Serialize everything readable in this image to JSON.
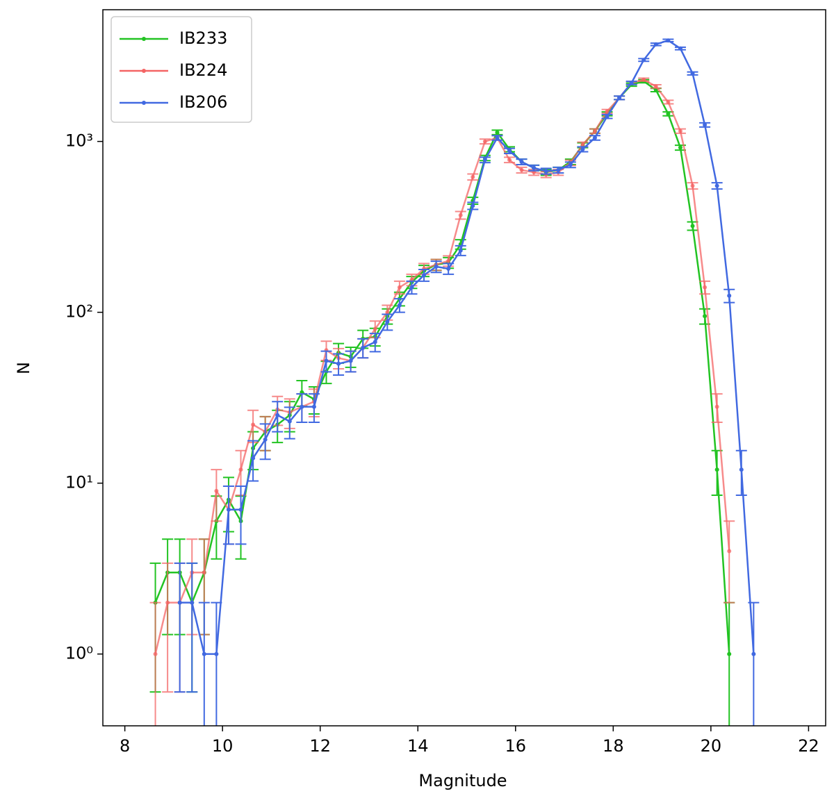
{
  "chart_data": {
    "type": "line",
    "x_label": "Magnitude",
    "y_label": "N",
    "log_y": true,
    "legend": "upper left",
    "xlim": [
      7.55,
      22.35
    ],
    "ylim": [
      0.38,
      5900
    ],
    "xticks": [
      8,
      10,
      12,
      14,
      16,
      18,
      20,
      22
    ],
    "yticks": [
      {
        "value": 1,
        "label": "10⁰"
      },
      {
        "value": 10,
        "label": "10¹"
      },
      {
        "value": 100,
        "label": "10²"
      },
      {
        "value": 1000,
        "label": "10³"
      }
    ],
    "x": [
      8.625,
      8.875,
      9.125,
      9.375,
      9.625,
      9.875,
      10.125,
      10.375,
      10.625,
      10.875,
      11.125,
      11.375,
      11.625,
      11.875,
      12.125,
      12.375,
      12.625,
      12.875,
      13.125,
      13.375,
      13.625,
      13.875,
      14.125,
      14.375,
      14.625,
      14.875,
      15.125,
      15.375,
      15.625,
      15.875,
      16.125,
      16.375,
      16.625,
      16.875,
      17.125,
      17.375,
      17.625,
      17.875,
      18.125,
      18.375,
      18.625,
      18.875,
      19.125,
      19.375,
      19.625,
      19.875,
      20.125,
      20.375,
      20.625,
      20.875
    ],
    "series": [
      {
        "name": "IB233",
        "color": "#22c322",
        "values": [
          2,
          3,
          3,
          2,
          3,
          6,
          8,
          6,
          16,
          20,
          22,
          25,
          34,
          31,
          45,
          58,
          55,
          70,
          72,
          95,
          120,
          150,
          175,
          190,
          195,
          250,
          450,
          800,
          1130,
          900,
          760,
          700,
          660,
          680,
          760,
          950,
          1150,
          1450,
          1800,
          2150,
          2250,
          2000,
          1450,
          920,
          320,
          95,
          12,
          1,
          null,
          null
        ],
        "errors": [
          1.4,
          1.7,
          1.7,
          1.4,
          1.7,
          2.4,
          2.8,
          2.4,
          4,
          4.5,
          4.7,
          5,
          5.8,
          5.6,
          6.7,
          7.6,
          7.4,
          8.4,
          8.5,
          9.7,
          11,
          12,
          13,
          14,
          14,
          16,
          21,
          28,
          34,
          30,
          28,
          26,
          26,
          26,
          28,
          31,
          34,
          38,
          42,
          46,
          47,
          45,
          38,
          30,
          18,
          9.7,
          3.5,
          1,
          null,
          null
        ]
      },
      {
        "name": "IB224",
        "color": "#f46464",
        "values": [
          1,
          2,
          2,
          3,
          3,
          9,
          7,
          12,
          22,
          20,
          27,
          26,
          28,
          30,
          60,
          54,
          52,
          62,
          80,
          100,
          140,
          155,
          180,
          190,
          200,
          370,
          620,
          1000,
          1050,
          780,
          680,
          660,
          640,
          660,
          750,
          960,
          1150,
          1500,
          1800,
          2200,
          2300,
          2100,
          1700,
          1150,
          550,
          140,
          28,
          4,
          null,
          null
        ],
        "errors": [
          1,
          1.4,
          1.4,
          1.7,
          1.7,
          3,
          2.6,
          3.5,
          4.7,
          4.5,
          5.2,
          5.1,
          5.3,
          5.5,
          7.7,
          7.3,
          7.2,
          7.9,
          8.9,
          10,
          12,
          12,
          13,
          14,
          14,
          19,
          25,
          32,
          32,
          28,
          26,
          26,
          25,
          26,
          27,
          31,
          34,
          39,
          42,
          47,
          48,
          46,
          41,
          34,
          23,
          12,
          5.3,
          2,
          null,
          null
        ]
      },
      {
        "name": "IB206",
        "color": "#4169e1",
        "values": [
          null,
          null,
          2,
          2,
          1,
          1,
          7,
          7,
          14,
          18,
          25,
          23,
          28,
          28,
          52,
          50,
          52,
          62,
          67,
          88,
          110,
          140,
          165,
          185,
          180,
          230,
          420,
          780,
          1050,
          880,
          760,
          700,
          670,
          680,
          730,
          900,
          1050,
          1400,
          1800,
          2200,
          3000,
          3700,
          3900,
          3500,
          2500,
          1250,
          550,
          125,
          12,
          1
        ],
        "errors": [
          null,
          null,
          1.4,
          1.4,
          1,
          1,
          2.6,
          2.6,
          3.7,
          4.2,
          5,
          4.8,
          5.3,
          5.3,
          7.2,
          7.1,
          7.2,
          7.9,
          8.2,
          9.4,
          10,
          12,
          13,
          14,
          13,
          15,
          20,
          28,
          32,
          30,
          28,
          26,
          26,
          26,
          27,
          30,
          32,
          37,
          42,
          47,
          55,
          61,
          62,
          59,
          50,
          35,
          23,
          11,
          3.5,
          1
        ]
      }
    ]
  }
}
